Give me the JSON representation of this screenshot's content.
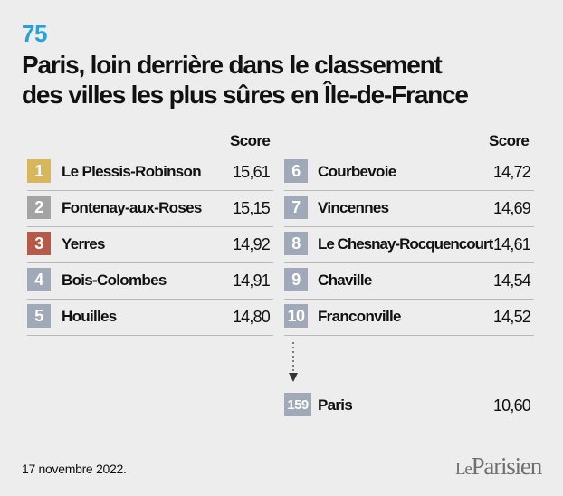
{
  "header": {
    "department": "75",
    "title_line1": "Paris, loin derrière dans le classement",
    "title_line2": "des villes les plus sûres en Île-de-France"
  },
  "column_header": "Score",
  "colors": {
    "gold": "#d8b75c",
    "silver": "#a4a4a4",
    "bronze": "#b55a48",
    "default": "#9fa9b7",
    "accent": "#2a9fd8"
  },
  "left_rows": [
    {
      "rank": "1",
      "name": "Le Plessis-Robinson",
      "score": "15,61"
    },
    {
      "rank": "2",
      "name": "Fontenay-aux-Roses",
      "score": "15,15"
    },
    {
      "rank": "3",
      "name": "Yerres",
      "score": "14,92"
    },
    {
      "rank": "4",
      "name": "Bois-Colombes",
      "score": "14,91"
    },
    {
      "rank": "5",
      "name": "Houilles",
      "score": "14,80"
    }
  ],
  "right_rows": [
    {
      "rank": "6",
      "name": "Courbevoie",
      "score": "14,72"
    },
    {
      "rank": "7",
      "name": "Vincennes",
      "score": "14,69"
    },
    {
      "rank": "8",
      "name": "Le Chesnay-Rocquencourt",
      "score": "14,61"
    },
    {
      "rank": "9",
      "name": "Chaville",
      "score": "14,54"
    },
    {
      "rank": "10",
      "name": "Franconville",
      "score": "14,52"
    }
  ],
  "paris_row": {
    "rank": "159",
    "name": "Paris",
    "score": "10,60"
  },
  "footer": {
    "date": "17 novembre 2022.",
    "logo_le": "Le",
    "logo_name": "Parisien"
  }
}
